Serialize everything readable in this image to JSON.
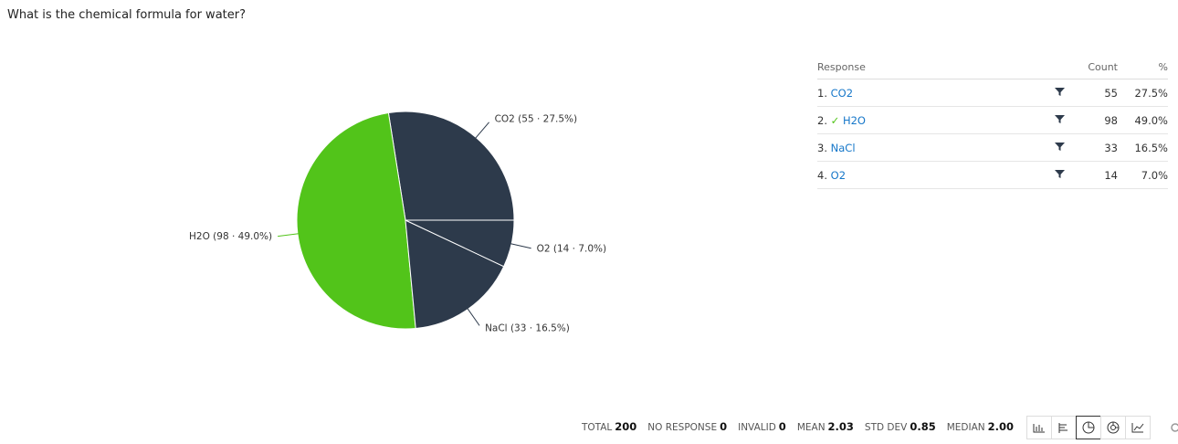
{
  "header": {
    "title": "What is the chemical formula for water?"
  },
  "chart_data": {
    "type": "pie",
    "categories": [
      "CO2",
      "H2O",
      "NaCl",
      "O2"
    ],
    "values": [
      55,
      98,
      33,
      14
    ],
    "value_labels": [
      "CO2 (55 · 27.5%)",
      "H2O (98 · 49.0%)",
      "NaCl (33 · 16.5%)",
      "O2 (14 · 7.0%)"
    ],
    "colors": [
      "#2d3a4b",
      "#52c41a",
      "#2d3a4b",
      "#2d3a4b"
    ]
  },
  "table": {
    "columns": [
      "Response",
      "Count",
      "%"
    ],
    "rows": [
      {
        "index": "1.",
        "label": "CO2",
        "count": 55,
        "percent": "27.5%"
      },
      {
        "index": "2.",
        "check": "✓",
        "label": "H2O",
        "count": 98,
        "percent": "49.0%"
      },
      {
        "index": "3.",
        "label": "NaCl",
        "count": 33,
        "percent": "16.5%"
      },
      {
        "index": "4.",
        "label": "O2",
        "count": 14,
        "percent": "7.0%"
      }
    ]
  },
  "stats": [
    {
      "label": "TOTAL",
      "value": "200"
    },
    {
      "label": "NO RESPONSE",
      "value": "0"
    },
    {
      "label": "INVALID",
      "value": "0"
    },
    {
      "label": "MEAN",
      "value": "2.03"
    },
    {
      "label": "STD DEV",
      "value": "0.85"
    },
    {
      "label": "MEDIAN",
      "value": "2.00"
    }
  ]
}
